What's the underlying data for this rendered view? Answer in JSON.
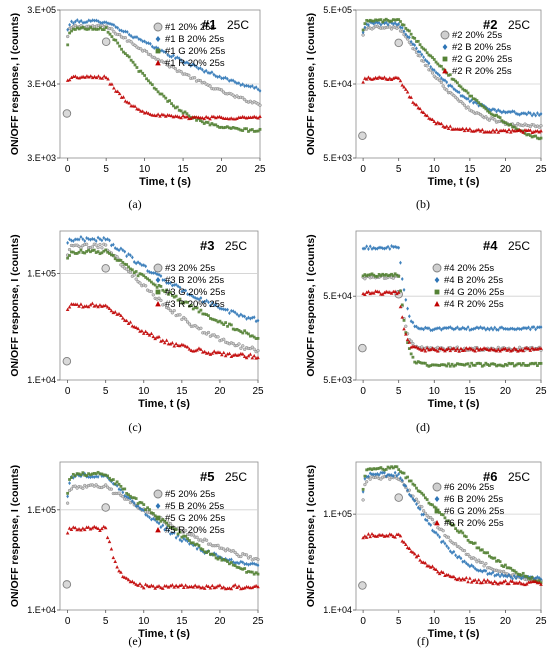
{
  "chart_data": [
    {
      "id": "a",
      "caption": "(a)",
      "title": "#1",
      "temp": "25C",
      "type": "scatter",
      "xlabel": "Time, t (s)",
      "ylabel": "ON/OFF response, I (counts)",
      "xlim": [
        -1,
        25
      ],
      "xticks": [
        "0",
        "5",
        "10",
        "15",
        "20",
        "25"
      ],
      "yscale": "log",
      "ylim": [
        3000,
        300000
      ],
      "yticks": [
        {
          "v": 3000,
          "label": "3.E+03"
        },
        {
          "v": 30000,
          "label": "3.E+04"
        },
        {
          "v": 300000,
          "label": "3.E+05"
        }
      ],
      "gridlines": [
        30000
      ],
      "legend_position": "right",
      "series": [
        {
          "name": "#1  20%  25s",
          "color": "#7f7f7f",
          "marker": "circle",
          "on": [
            180000,
            0.25,
            130000
          ],
          "off": [
            19000,
            6,
            10000
          ],
          "initial": 12000
        },
        {
          "name": "#1 B  20% 25s",
          "color": "#2e75b6",
          "marker": "diamond",
          "on": [
            210000,
            0.25,
            160000
          ],
          "off": [
            22000,
            7,
            14000
          ],
          "initial": 0
        },
        {
          "name": "#1 G  20% 25s",
          "color": "#548235",
          "marker": "square",
          "on": [
            170000,
            0.25,
            100000
          ],
          "off": [
            16000,
            3,
            6800
          ],
          "initial": 0
        },
        {
          "name": "#1 R  20% 25s",
          "color": "#c00000",
          "marker": "triangle",
          "on": [
            37000,
            0.25,
            33000
          ],
          "off": [
            14000,
            2,
            10500
          ],
          "initial": 0
        }
      ]
    },
    {
      "id": "b",
      "caption": "(b)",
      "title": "#2",
      "temp": "25C",
      "type": "scatter",
      "xlabel": "Time, t (s)",
      "ylabel": "ON/OFF response, I (counts)",
      "xlim": [
        -1,
        25
      ],
      "xticks": [
        "0",
        "5",
        "10",
        "15",
        "20",
        "25"
      ],
      "yscale": "log",
      "ylim": [
        5000,
        500000
      ],
      "yticks": [
        {
          "v": 5000,
          "label": "5.E+03"
        },
        {
          "v": 50000,
          "label": "5.E+04"
        },
        {
          "v": 500000,
          "label": "5.E+05"
        }
      ],
      "gridlines": [
        50000
      ],
      "legend_position": "right",
      "series": [
        {
          "name": "#2  20%  25s",
          "color": "#7f7f7f",
          "marker": "circle",
          "on": [
            290000,
            0.25,
            240000
          ],
          "off": [
            22000,
            3,
            13000
          ],
          "initial": 10000
        },
        {
          "name": "#2 B  20% 25s",
          "color": "#2e75b6",
          "marker": "diamond",
          "on": [
            330000,
            0.25,
            260000
          ],
          "off": [
            30000,
            3,
            19000
          ],
          "initial": 0
        },
        {
          "name": "#2 G  20% 25s",
          "color": "#548235",
          "marker": "square",
          "on": [
            360000,
            0.25,
            280000
          ],
          "off": [
            14000,
            4,
            6800
          ],
          "initial": 0
        },
        {
          "name": "#2 R  20% 25s",
          "color": "#c00000",
          "marker": "triangle",
          "on": [
            60000,
            0.25,
            55000
          ],
          "off": [
            20000,
            2,
            11500
          ],
          "initial": 0
        }
      ]
    },
    {
      "id": "c",
      "caption": "(c)",
      "title": "#3",
      "temp": "25C",
      "type": "scatter",
      "xlabel": "Time, t (s)",
      "ylabel": "ON/OFF response, I (counts)",
      "xlim": [
        -1,
        25
      ],
      "xticks": [
        "0",
        "5",
        "10",
        "15",
        "20",
        "25"
      ],
      "yscale": "log",
      "ylim": [
        10000,
        250000
      ],
      "yticks": [
        {
          "v": 10000,
          "label": "1.E+04"
        },
        {
          "v": 100000,
          "label": "1.E+05"
        }
      ],
      "gridlines": [
        100000
      ],
      "legend_position": "right",
      "series": [
        {
          "name": "#3 20% 25s",
          "color": "#7f7f7f",
          "marker": "circle",
          "on": [
            180000,
            0.25,
            150000
          ],
          "off": [
            22000,
            5,
            16000
          ],
          "initial": 15000
        },
        {
          "name": "#3 B 20% 25s",
          "color": "#2e75b6",
          "marker": "diamond",
          "on": [
            210000,
            0.25,
            195000
          ],
          "off": [
            45000,
            7,
            26000
          ],
          "initial": 0
        },
        {
          "name": "#3 G 20% 25s",
          "color": "#548235",
          "marker": "square",
          "on": [
            160000,
            0.25,
            140000
          ],
          "off": [
            20000,
            8,
            13000
          ],
          "initial": 0
        },
        {
          "name": "#3 R 20% 25s",
          "color": "#c00000",
          "marker": "triangle",
          "on": [
            50000,
            0.25,
            46000
          ],
          "off": [
            20000,
            5,
            16000
          ],
          "initial": 0
        }
      ]
    },
    {
      "id": "d",
      "caption": "(d)",
      "title": "#4",
      "temp": "25C",
      "type": "scatter",
      "xlabel": "Time, t (s)",
      "ylabel": "ON/OFF response, I (counts)",
      "xlim": [
        -1,
        25
      ],
      "xticks": [
        "0",
        "5",
        "10",
        "15",
        "20",
        "25"
      ],
      "yscale": "log",
      "ylim": [
        5000,
        300000
      ],
      "yticks": [
        {
          "v": 5000,
          "label": "5.E+03"
        },
        {
          "v": 50000,
          "label": "5.E+04"
        }
      ],
      "gridlines": [
        50000
      ],
      "legend_position": "right",
      "series": [
        {
          "name": "#4 20% 25s",
          "color": "#7f7f7f",
          "marker": "circle",
          "on": [
            85000,
            0.25,
            82000
          ],
          "off": [
            13000,
            0.5,
            11800
          ],
          "initial": 12000
        },
        {
          "name": "#4 B 20% 25s",
          "color": "#2e75b6",
          "marker": "diamond",
          "on": [
            190000,
            0.25,
            180000
          ],
          "off": [
            22000,
            0.5,
            20500
          ],
          "initial": 0
        },
        {
          "name": "#4 G 20% 25s",
          "color": "#548235",
          "marker": "square",
          "on": [
            90000,
            0.25,
            85000
          ],
          "off": [
            9000,
            0.5,
            7600
          ],
          "initial": 0
        },
        {
          "name": "#4 R 20% 25s",
          "color": "#c00000",
          "marker": "triangle",
          "on": [
            55000,
            0.25,
            52000
          ],
          "off": [
            12500,
            0.5,
            11500
          ],
          "initial": 0
        }
      ]
    },
    {
      "id": "e",
      "caption": "(e)",
      "title": "#5",
      "temp": "25C",
      "type": "scatter",
      "xlabel": "Time, t (s)",
      "ylabel": "ON/OFF response, I (counts)",
      "xlim": [
        -1,
        25
      ],
      "xticks": [
        "0",
        "5",
        "10",
        "15",
        "20",
        "25"
      ],
      "yscale": "log",
      "ylim": [
        10000,
        300000
      ],
      "yticks": [
        {
          "v": 10000,
          "label": "1.E+04"
        },
        {
          "v": 100000,
          "label": "1.E+05"
        }
      ],
      "gridlines": [
        100000
      ],
      "legend_position": "right",
      "series": [
        {
          "name": "#5 20% 25s",
          "color": "#7f7f7f",
          "marker": "circle",
          "on": [
            170000,
            0.25,
            120000
          ],
          "off": [
            25000,
            8,
            19000
          ],
          "initial": 18000
        },
        {
          "name": "#5 B 20% 25s",
          "color": "#2e75b6",
          "marker": "diamond",
          "on": [
            220000,
            0.25,
            140000
          ],
          "off": [
            60000,
            5,
            24000
          ],
          "initial": 0
        },
        {
          "name": "#5 G 20% 25s",
          "color": "#548235",
          "marker": "square",
          "on": [
            230000,
            0.25,
            150000
          ],
          "off": [
            40000,
            6,
            15000
          ],
          "initial": 0
        },
        {
          "name": "#5 R 20% 25s",
          "color": "#c00000",
          "marker": "triangle",
          "on": [
            65000,
            0.25,
            60000
          ],
          "off": [
            20000,
            1,
            17000
          ],
          "initial": 0
        }
      ]
    },
    {
      "id": "f",
      "caption": "(f)",
      "title": "#6",
      "temp": "25C",
      "type": "scatter",
      "xlabel": "Time, t (s)",
      "ylabel": "ON/OFF response, I (counts)",
      "xlim": [
        -1,
        25
      ],
      "xticks": [
        "0",
        "5",
        "10",
        "15",
        "20",
        "25"
      ],
      "yscale": "log",
      "ylim": [
        10000,
        350000
      ],
      "yticks": [
        {
          "v": 10000,
          "label": "1.E+04"
        },
        {
          "v": 100000,
          "label": "1.E+05"
        }
      ],
      "gridlines": [
        100000
      ],
      "legend_position": "right",
      "series": [
        {
          "name": "#6 20% 25s",
          "color": "#7f7f7f",
          "marker": "circle",
          "on": [
            240000,
            0.25,
            140000
          ],
          "off": [
            45000,
            4,
            19000
          ],
          "initial": 18000
        },
        {
          "name": "#6 B 20% 25s",
          "color": "#2e75b6",
          "marker": "diamond",
          "on": [
            260000,
            0.25,
            170000
          ],
          "off": [
            60000,
            3,
            21000
          ],
          "initial": 0
        },
        {
          "name": "#6 G 20% 25s",
          "color": "#548235",
          "marker": "square",
          "on": [
            300000,
            0.25,
            180000
          ],
          "off": [
            45000,
            5,
            14500
          ],
          "initial": 0
        },
        {
          "name": "#6 R 20% 25s",
          "color": "#c00000",
          "marker": "triangle",
          "on": [
            60000,
            0.25,
            56000
          ],
          "off": [
            28000,
            3,
            19000
          ],
          "initial": 0
        }
      ]
    }
  ]
}
